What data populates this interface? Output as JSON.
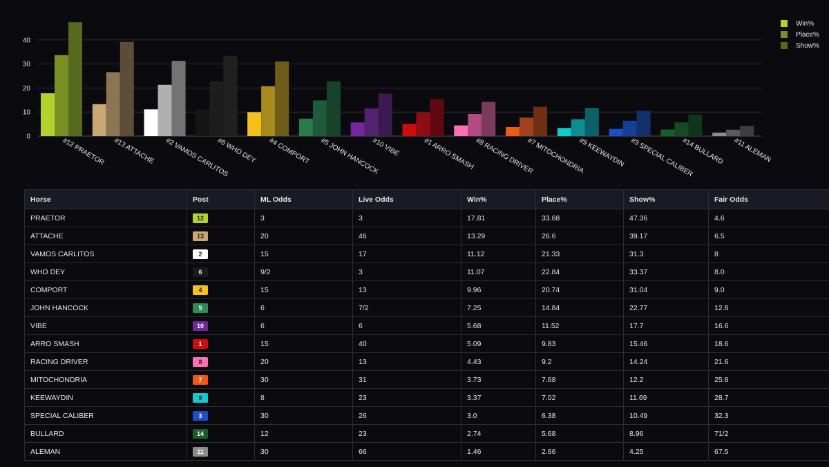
{
  "chart_data": {
    "type": "bar",
    "categories": [
      "#12 PRAETOR",
      "#13 ATTACHE",
      "#2 VAMOS CARLITOS",
      "#6 WHO DEY",
      "#4 COMPORT",
      "#5 JOHN HANCOCK",
      "#10 VIBE",
      "#1 ARRO SMASH",
      "#8 RACING DRIVER",
      "#7 MITOCHONDRIA",
      "#9 KEEWAYDIN",
      "#3 SPECIAL CALIBER",
      "#14 BULLARD",
      "#11 ALEMAN"
    ],
    "series": [
      {
        "name": "Win%",
        "values": [
          17.81,
          13.29,
          11.12,
          11.07,
          9.96,
          7.25,
          5.68,
          5.09,
          4.43,
          3.73,
          3.37,
          3.0,
          2.74,
          1.46
        ]
      },
      {
        "name": "Place%",
        "values": [
          33.68,
          26.6,
          21.33,
          22.84,
          20.74,
          14.84,
          11.52,
          9.83,
          9.2,
          7.68,
          7.02,
          6.38,
          5.68,
          2.66
        ]
      },
      {
        "name": "Show%",
        "values": [
          47.36,
          39.17,
          31.3,
          33.37,
          31.04,
          22.77,
          17.7,
          15.46,
          14.24,
          12.2,
          11.69,
          10.49,
          8.96,
          4.25
        ]
      }
    ],
    "bar_colors": [
      [
        "#b5d12d",
        "#7c8f25",
        "#566a1f"
      ],
      [
        "#c9a873",
        "#8b7552",
        "#5c4c39"
      ],
      [
        "#ffffff",
        "#b0b0b0",
        "#737373"
      ],
      [
        "#161616",
        "#1d1d1d",
        "#202020"
      ],
      [
        "#f4c01b",
        "#a88a1e",
        "#6f5c18"
      ],
      [
        "#2a7a4c",
        "#1f5b3a",
        "#17432b"
      ],
      [
        "#74279a",
        "#52236e",
        "#3b1b4f"
      ],
      [
        "#cf0c0c",
        "#8e0c14",
        "#62090f"
      ],
      [
        "#ff6fb5",
        "#b34a80",
        "#7c3a5d"
      ],
      [
        "#ec5a18",
        "#a0401c",
        "#6f2f14"
      ],
      [
        "#12c9cc",
        "#0f8c90",
        "#0d6066"
      ],
      [
        "#1c4ec7",
        "#173e96",
        "#13306a"
      ],
      [
        "#1b5c2b",
        "#174a24",
        "#11351b"
      ],
      [
        "#8c8c8c",
        "#5b5b5b",
        "#3e3e3e"
      ]
    ],
    "ylim": [
      0,
      50
    ],
    "yticks": [
      0,
      10,
      20,
      30,
      40
    ],
    "grid": true,
    "legend_position": "top-right",
    "legend_colors": [
      "#b5d12d",
      "#7c8f25",
      "#566a1f"
    ]
  },
  "table": {
    "headers": [
      "Horse",
      "Post",
      "ML Odds",
      "Live Odds",
      "Win%",
      "Place%",
      "Show%",
      "Fair Odds"
    ],
    "rows": [
      {
        "horse": "PRAETOR",
        "post": "12",
        "post_bg": "#b5d12d",
        "post_fg": "#222222",
        "ml": "3",
        "live": "3",
        "win": "17.81",
        "place": "33.68",
        "show": "47.36",
        "fair": "4.6"
      },
      {
        "horse": "ATTACHE",
        "post": "13",
        "post_bg": "#c9a873",
        "post_fg": "#222222",
        "ml": "20",
        "live": "46",
        "win": "13.29",
        "place": "26.6",
        "show": "39.17",
        "fair": "6.5"
      },
      {
        "horse": "VAMOS CARLITOS",
        "post": "2",
        "post_bg": "#ffffff",
        "post_fg": "#222222",
        "ml": "15",
        "live": "17",
        "win": "11.12",
        "place": "21.33",
        "show": "31.3",
        "fair": "8"
      },
      {
        "horse": "WHO DEY",
        "post": "6",
        "post_bg": "#1b1b1b",
        "post_fg": "#e6e6e6",
        "ml": "9/2",
        "live": "3",
        "win": "11.07",
        "place": "22.84",
        "show": "33.37",
        "fair": "8.0"
      },
      {
        "horse": "COMPORT",
        "post": "4",
        "post_bg": "#f4c01b",
        "post_fg": "#222222",
        "ml": "15",
        "live": "13",
        "win": "9.96",
        "place": "20.74",
        "show": "31.04",
        "fair": "9.0"
      },
      {
        "horse": "JOHN HANCOCK",
        "post": "5",
        "post_bg": "#2e8b57",
        "post_fg": "#ffffff",
        "ml": "6",
        "live": "7/2",
        "win": "7.25",
        "place": "14.84",
        "show": "22.77",
        "fair": "12.8"
      },
      {
        "horse": "VIBE",
        "post": "10",
        "post_bg": "#74279a",
        "post_fg": "#ffffff",
        "ml": "6",
        "live": "6",
        "win": "5.68",
        "place": "11.52",
        "show": "17.7",
        "fair": "16.6"
      },
      {
        "horse": "ARRO SMASH",
        "post": "1",
        "post_bg": "#cf0c0c",
        "post_fg": "#ffffff",
        "ml": "15",
        "live": "40",
        "win": "5.09",
        "place": "9.83",
        "show": "15.46",
        "fair": "18.6"
      },
      {
        "horse": "RACING DRIVER",
        "post": "8",
        "post_bg": "#ff6fb5",
        "post_fg": "#222222",
        "ml": "20",
        "live": "13",
        "win": "4.43",
        "place": "9.2",
        "show": "14.24",
        "fair": "21.6"
      },
      {
        "horse": "MITOCHONDRIA",
        "post": "7",
        "post_bg": "#ec5a18",
        "post_fg": "#ffffff",
        "ml": "30",
        "live": "31",
        "win": "3.73",
        "place": "7.68",
        "show": "12.2",
        "fair": "25.8"
      },
      {
        "horse": "KEEWAYDIN",
        "post": "9",
        "post_bg": "#12c9cc",
        "post_fg": "#222222",
        "ml": "8",
        "live": "23",
        "win": "3.37",
        "place": "7.02",
        "show": "11.69",
        "fair": "28.7"
      },
      {
        "horse": "SPECIAL CALIBER",
        "post": "3",
        "post_bg": "#1c4ec7",
        "post_fg": "#ffffff",
        "ml": "30",
        "live": "26",
        "win": "3.0",
        "place": "6.38",
        "show": "10.49",
        "fair": "32.3"
      },
      {
        "horse": "BULLARD",
        "post": "14",
        "post_bg": "#1b5c2b",
        "post_fg": "#ffffff",
        "ml": "12",
        "live": "23",
        "win": "2.74",
        "place": "5.68",
        "show": "8.96",
        "fair": "71/2"
      },
      {
        "horse": "ALEMAN",
        "post": "11",
        "post_bg": "#8c8c8c",
        "post_fg": "#ffffff",
        "ml": "30",
        "live": "66",
        "win": "1.46",
        "place": "2.66",
        "show": "4.25",
        "fair": "67.5"
      }
    ]
  }
}
